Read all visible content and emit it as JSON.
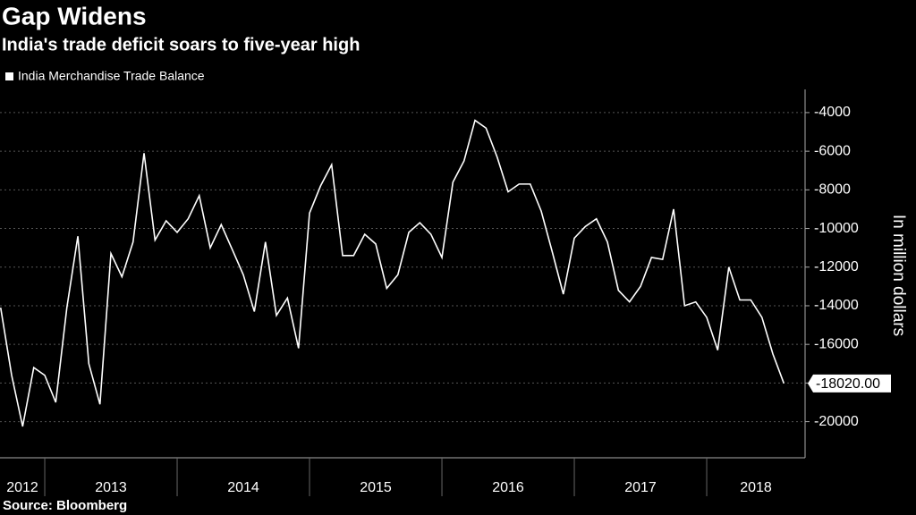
{
  "chart_data": {
    "type": "line",
    "title": "Gap Widens",
    "subtitle": "India's trade deficit soars to five-year high",
    "y_axis_label": "In million dollars",
    "source": "Source: Bloomberg",
    "x": [
      2012.667,
      2012.75,
      2012.833,
      2012.917,
      2013.0,
      2013.083,
      2013.167,
      2013.25,
      2013.333,
      2013.417,
      2013.5,
      2013.583,
      2013.667,
      2013.75,
      2013.833,
      2013.917,
      2014.0,
      2014.083,
      2014.167,
      2014.25,
      2014.333,
      2014.417,
      2014.5,
      2014.583,
      2014.667,
      2014.75,
      2014.833,
      2014.917,
      2015.0,
      2015.083,
      2015.167,
      2015.25,
      2015.333,
      2015.417,
      2015.5,
      2015.583,
      2015.667,
      2015.75,
      2015.833,
      2015.917,
      2016.0,
      2016.083,
      2016.167,
      2016.25,
      2016.333,
      2016.417,
      2016.5,
      2016.583,
      2016.667,
      2016.75,
      2016.833,
      2016.917,
      2017.0,
      2017.083,
      2017.167,
      2017.25,
      2017.333,
      2017.417,
      2017.5,
      2017.583,
      2017.667,
      2017.75,
      2017.833,
      2017.917,
      2018.0,
      2018.083,
      2018.167,
      2018.25,
      2018.333,
      2018.417,
      2018.5,
      2018.583
    ],
    "series": [
      {
        "name": "India Merchandise Trade Balance",
        "color": "#ffffff",
        "values": [
          -14100,
          -17600,
          -20250,
          -17200,
          -17600,
          -19000,
          -14100,
          -10400,
          -17000,
          -19100,
          -11300,
          -12500,
          -10700,
          -6100,
          -10600,
          -9600,
          -10200,
          -9500,
          -8300,
          -11000,
          -9800,
          -11100,
          -12400,
          -14300,
          -10700,
          -14500,
          -13600,
          -16200,
          -9200,
          -7800,
          -6700,
          -11400,
          -11400,
          -10300,
          -10800,
          -13100,
          -12400,
          -10200,
          -9700,
          -10300,
          -11500,
          -7600,
          -6500,
          -4400,
          -4800,
          -6300,
          -8100,
          -7700,
          -7700,
          -9100,
          -11200,
          -13400,
          -10500,
          -9900,
          -9500,
          -10700,
          -13200,
          -13800,
          -13000,
          -11500,
          -11600,
          -9000,
          -14000,
          -13800,
          -14600,
          -16300,
          -12000,
          -13700,
          -13700,
          -14600,
          -16500,
          -18020
        ],
        "value_labels": [
          null,
          null,
          null,
          null,
          null,
          null,
          null,
          null,
          null,
          null,
          null,
          null,
          null,
          null,
          null,
          null,
          null,
          null,
          null,
          null,
          null,
          null,
          null,
          null,
          null,
          null,
          null,
          null,
          null,
          null,
          null,
          null,
          null,
          null,
          null,
          null,
          null,
          null,
          null,
          null,
          null,
          null,
          null,
          null,
          null,
          null,
          null,
          null,
          null,
          null,
          null,
          null,
          null,
          null,
          null,
          null,
          null,
          null,
          null,
          null,
          null,
          null,
          null,
          null,
          null,
          null,
          null,
          null,
          null,
          null,
          null,
          "-18020.00"
        ]
      }
    ],
    "xlim": [
      2012.662,
      2018.743
    ],
    "xticks": [
      {
        "value": 2012.5,
        "label": "2012"
      },
      {
        "value": 2013.5,
        "label": "2013"
      },
      {
        "value": 2014.5,
        "label": "2014"
      },
      {
        "value": 2015.5,
        "label": "2015"
      },
      {
        "value": 2016.5,
        "label": "2016"
      },
      {
        "value": 2017.5,
        "label": "2017"
      },
      {
        "value": 2018.5,
        "label": "2018"
      }
    ],
    "ylim": [
      -21870,
      -2800
    ],
    "yticks": [
      -20000,
      -18000,
      -16000,
      -14000,
      -12000,
      -10000,
      -8000,
      -6000,
      -4000
    ],
    "grid": true
  }
}
